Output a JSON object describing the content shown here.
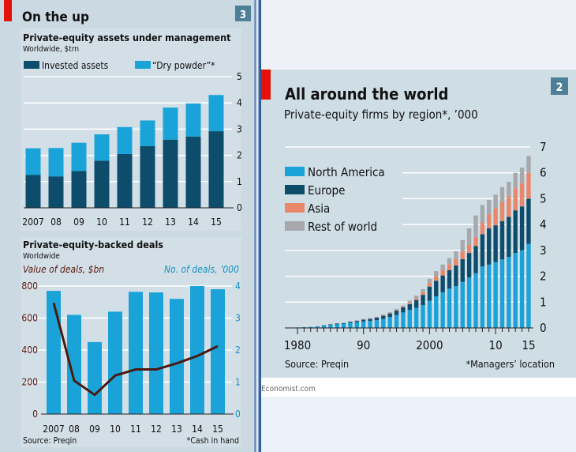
{
  "left_panel": {
    "title": "On the up",
    "number": "3",
    "colors": {
      "accent_red": "#e3120b",
      "invested": "#0d4d6b",
      "dry_powder": "#1aa3d9",
      "line": "#4a1a10",
      "number_box": "#4e7f99"
    }
  },
  "right_panel": {
    "title": "All around the world",
    "subtitle": "Private-equity firms by region*, ’000",
    "number": "2",
    "source": "Source: Preqin",
    "footnote": "*Managers’ location",
    "credit": "Economist.com"
  },
  "chart_data": [
    {
      "type": "bar",
      "stacked": true,
      "title": "Private-equity assets under management",
      "subtitle": "Worldwide, $trn",
      "categories": [
        "2007",
        "08",
        "09",
        "10",
        "11",
        "12",
        "13",
        "14",
        "15"
      ],
      "series": [
        {
          "name": "Invested assets",
          "color": "#0d4d6b",
          "values": [
            1.25,
            1.2,
            1.4,
            1.8,
            2.05,
            2.35,
            2.6,
            2.72,
            2.92
          ]
        },
        {
          "name": "“Dry powder”*",
          "color": "#1aa3d9",
          "values": [
            1.02,
            1.08,
            1.08,
            1.0,
            1.03,
            0.98,
            1.22,
            1.26,
            1.38
          ]
        }
      ],
      "ylim": [
        0,
        5
      ],
      "yticks": [
        "0",
        "1",
        "2",
        "3",
        "4",
        "5"
      ],
      "y_axis_side": "right",
      "grid": true,
      "legend": "top"
    },
    {
      "type": "bar+line",
      "title": "Private-equity-backed deals",
      "subtitle": "Worldwide",
      "categories": [
        "2007",
        "08",
        "09",
        "10",
        "11",
        "12",
        "13",
        "14",
        "15"
      ],
      "line": {
        "label": "Value of deals, $bn",
        "axis": "left",
        "color": "#4a1a10",
        "values": [
          695,
          209,
          120,
          241,
          279,
          279,
          317,
          363,
          424
        ]
      },
      "bars": {
        "label": "No. of deals, ’000",
        "axis": "right",
        "color": "#1aa3d9",
        "values": [
          3.85,
          3.1,
          2.25,
          3.2,
          3.82,
          3.8,
          3.6,
          4.0,
          3.9
        ]
      },
      "left_ylim": [
        0,
        800
      ],
      "left_yticks": [
        "0",
        "200",
        "400",
        "600",
        "800"
      ],
      "right_ylim": [
        0,
        4
      ],
      "right_yticks": [
        "0",
        "1",
        "2",
        "3",
        "4"
      ],
      "grid": true,
      "source": "Source: Preqin",
      "footnote": "*Cash in hand"
    },
    {
      "type": "bar",
      "stacked": true,
      "x": [
        1980,
        1981,
        1982,
        1983,
        1984,
        1985,
        1986,
        1987,
        1988,
        1989,
        1990,
        1991,
        1992,
        1993,
        1994,
        1995,
        1996,
        1997,
        1998,
        1999,
        2000,
        2001,
        2002,
        2003,
        2004,
        2005,
        2006,
        2007,
        2008,
        2009,
        2010,
        2011,
        2012,
        2013,
        2014,
        2015
      ],
      "xtick_labels": [
        "1980",
        "90",
        "2000",
        "10",
        "15"
      ],
      "series": [
        {
          "name": "North America",
          "color": "#1aa3d9",
          "values": [
            0.02,
            0.03,
            0.04,
            0.05,
            0.08,
            0.12,
            0.14,
            0.16,
            0.2,
            0.22,
            0.25,
            0.27,
            0.3,
            0.35,
            0.42,
            0.5,
            0.6,
            0.7,
            0.78,
            0.88,
            1.05,
            1.22,
            1.38,
            1.52,
            1.62,
            1.78,
            1.95,
            2.12,
            2.38,
            2.45,
            2.55,
            2.65,
            2.75,
            2.9,
            3.0,
            3.25
          ]
        },
        {
          "name": "Europe",
          "color": "#0d4d6b",
          "values": [
            0,
            0,
            0,
            0.01,
            0.02,
            0.02,
            0.03,
            0.03,
            0.04,
            0.05,
            0.07,
            0.08,
            0.1,
            0.12,
            0.14,
            0.17,
            0.2,
            0.22,
            0.3,
            0.4,
            0.55,
            0.6,
            0.65,
            0.72,
            0.8,
            0.88,
            0.95,
            1.05,
            1.25,
            1.4,
            1.42,
            1.48,
            1.55,
            1.65,
            1.7,
            1.75
          ]
        },
        {
          "name": "Asia",
          "color": "#e8876a",
          "values": [
            0,
            0,
            0,
            0,
            0,
            0,
            0,
            0,
            0,
            0.01,
            0.01,
            0.01,
            0.01,
            0.02,
            0.02,
            0.03,
            0.03,
            0.05,
            0.07,
            0.1,
            0.15,
            0.18,
            0.2,
            0.22,
            0.25,
            0.3,
            0.32,
            0.35,
            0.45,
            0.55,
            0.65,
            0.75,
            0.8,
            0.85,
            0.9,
            1.0
          ]
        },
        {
          "name": "Rest of world",
          "color": "#a6a8ab",
          "values": [
            0,
            0,
            0,
            0,
            0,
            0.01,
            0.01,
            0.01,
            0.01,
            0.02,
            0.02,
            0.02,
            0.02,
            0.03,
            0.03,
            0.04,
            0.04,
            0.08,
            0.1,
            0.12,
            0.15,
            0.2,
            0.22,
            0.24,
            0.3,
            0.44,
            0.63,
            0.83,
            0.67,
            0.55,
            0.53,
            0.57,
            0.55,
            0.6,
            0.6,
            0.65
          ]
        }
      ],
      "ylim": [
        0,
        7
      ],
      "yticks": [
        "0",
        "1",
        "2",
        "3",
        "4",
        "5",
        "6",
        "7"
      ],
      "y_axis_side": "right",
      "grid": true,
      "legend": "top-left"
    }
  ]
}
